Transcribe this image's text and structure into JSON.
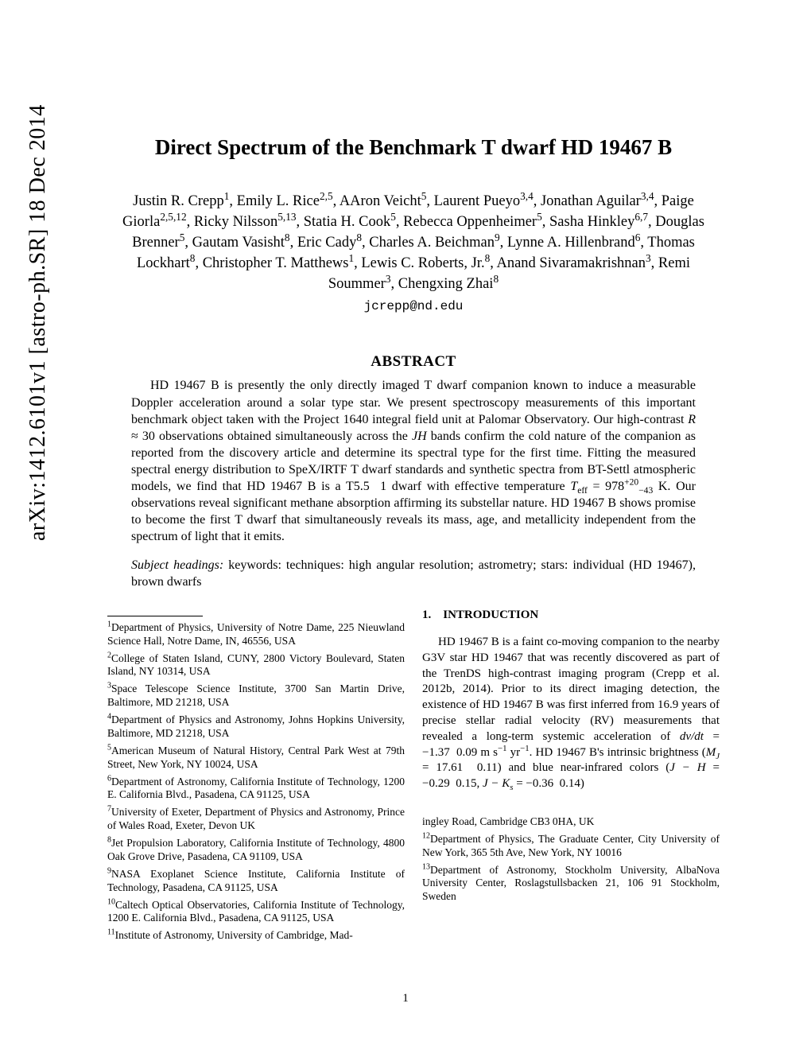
{
  "arxiv_stamp": "arXiv:1412.6101v1  [astro-ph.SR]  18 Dec 2014",
  "title": "Direct Spectrum of the Benchmark T dwarf HD 19467 B",
  "authors_html": "Justin R. Crepp<sup>1</sup>, Emily L. Rice<sup>2,5</sup>, AAron Veicht<sup>5</sup>, Laurent Pueyo<sup>3,4</sup>, Jonathan Aguilar<sup>3,4</sup>, Paige Giorla<sup>2,5,12</sup>, Ricky Nilsson<sup>5,13</sup>, Statia H. Cook<sup>5</sup>, Rebecca Oppenheimer<sup>5</sup>, Sasha Hinkley<sup>6,7</sup>, Douglas Brenner<sup>5</sup>, Gautam Vasisht<sup>8</sup>, Eric Cady<sup>8</sup>, Charles A. Beichman<sup>9</sup>, Lynne A. Hillenbrand<sup>6</sup>, Thomas Lockhart<sup>8</sup>, Christopher T. Matthews<sup>1</sup>, Lewis C. Roberts, Jr.<sup>8</sup>, Anand Sivaramakrishnan<sup>3</sup>, Remi Soummer<sup>3</sup>, Chengxing Zhai<sup>8</sup>",
  "email": "jcrepp@nd.edu",
  "abstract_head": "ABSTRACT",
  "abstract_html": "<span class=\"indent\"></span>HD 19467 B is presently the only directly imaged T dwarf companion known to induce a measurable Doppler acceleration around a solar type star. We present spectroscopy measurements of this important benchmark object taken with the Project 1640 integral field unit at Palomar Observatory. Our high-contrast <i>R</i> ≈ 30 observations obtained simultaneously across the <i>JH</i> bands confirm the cold nature of the companion as reported from the discovery article and determine its spectral type for the first time. Fitting the measured spectral energy distribution to SpeX/IRTF T dwarf standards and synthetic spectra from BT-Settl atmospheric models, we find that HD 19467 B is a T5.5&nbsp;&nbsp;1 dwarf with effective temperature <i>T</i><sub>eff</sub> = 978<sup>+20</sup><sub>−43</sub> K. Our observations reveal significant methane absorption affirming its substellar nature. HD 19467 B shows promise to become the first T dwarf that simultaneously reveals its mass, age, and metallicity independent from the spectrum of light that it emits.",
  "subjects_label": "Subject headings:",
  "subjects_text": "keywords: techniques: high angular resolution; astrometry; stars: individual (HD 19467), brown dwarfs",
  "affiliations_col1": [
    "<sup>1</sup>Department of Physics, University of Notre Dame, 225 Nieuwland Science Hall, Notre Dame, IN, 46556, USA",
    "<sup>2</sup>College of Staten Island, CUNY, 2800 Victory Boulevard, Staten Island, NY 10314, USA",
    "<sup>3</sup>Space Telescope Science Institute, 3700 San Martin Drive, Baltimore, MD 21218, USA",
    "<sup>4</sup>Department of Physics and Astronomy, Johns Hopkins University, Baltimore, MD 21218, USA",
    "<sup>5</sup>American Museum of Natural History, Central Park West at 79th Street, New York, NY 10024, USA",
    "<sup>6</sup>Department of Astronomy, California Institute of Technology, 1200 E. California Blvd., Pasadena, CA 91125, USA",
    "<sup>7</sup>University of Exeter, Department of Physics and Astronomy, Prince of Wales Road, Exeter, Devon UK",
    "<sup>8</sup>Jet Propulsion Laboratory, California Institute of Technology, 4800 Oak Grove Drive, Pasadena, CA 91109, USA",
    "<sup>9</sup>NASA Exoplanet Science Institute, California Institute of Technology, Pasadena, CA 91125, USA",
    "<sup>10</sup>Caltech Optical Observatories, California Institute of Technology, 1200 E. California Blvd., Pasadena, CA 91125, USA",
    "<sup>11</sup>Institute of Astronomy, University of Cambridge, Mad-"
  ],
  "section1_head": "1. INTRODUCTION",
  "intro_html": "<span class=\"indent\"></span>HD 19467 B is a faint co-moving companion to the nearby G3V star HD 19467 that was recently discovered as part of the TrenDS high-contrast imaging program (Crepp et al. 2012b, 2014). Prior to its direct imaging detection, the existence of HD 19467 B was first inferred from 16.9 years of precise stellar radial velocity (RV) measurements that revealed a long-term systemic acceleration of <i>dv/dt</i> = −1.37&nbsp;&nbsp;0.09 m s<sup>−1</sup> yr<sup>−1</sup>. HD 19467 B's intrinsic brightness (<i>M<sub>J</sub></i> = 17.61&nbsp;&nbsp;0.11) and blue near-infrared colors (<i>J − H</i> = −0.29&nbsp;&nbsp;0.15, <i>J − K<sub>s</sub></i> = −0.36&nbsp;&nbsp;0.14)",
  "affiliations_col2": [
    "ingley Road, Cambridge CB3 0HA, UK",
    "<sup>12</sup>Department of Physics, The Graduate Center, City University of New York, 365 5th Ave, New York, NY 10016",
    "<sup>13</sup>Department of Astronomy, Stockholm University, AlbaNova University Center, Roslagstullsbacken 21, 106 91 Stockholm, Sweden"
  ],
  "page_number": "1"
}
